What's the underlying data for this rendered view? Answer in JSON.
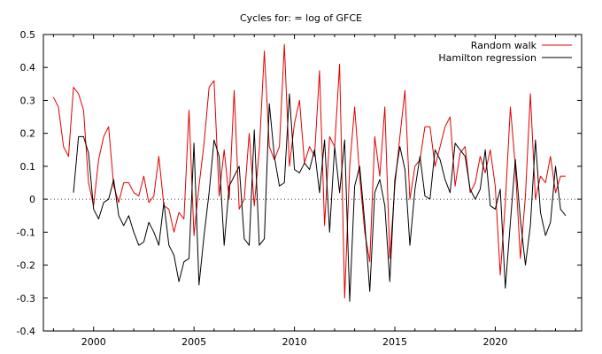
{
  "chart_data": {
    "type": "line",
    "title": "Cycles for: = log of GFCE",
    "xlim": [
      1997.5,
      2024.3
    ],
    "ylim": [
      -0.4,
      0.5
    ],
    "x_ticks": [
      2000,
      2005,
      2010,
      2015,
      2020
    ],
    "y_ticks": [
      -0.4,
      -0.3,
      -0.2,
      -0.1,
      0,
      0.1,
      0.2,
      0.3,
      0.4,
      0.5
    ],
    "grid": false,
    "zero_line": "dotted",
    "legend_position": "top-right",
    "series": [
      {
        "name": "Random walk",
        "color": "#e00000",
        "x": [
          1998.0,
          1998.25,
          1998.5,
          1998.75,
          1999.0,
          1999.25,
          1999.5,
          1999.75,
          2000.0,
          2000.25,
          2000.5,
          2000.75,
          2001.0,
          2001.25,
          2001.5,
          2001.75,
          2002.0,
          2002.25,
          2002.5,
          2002.75,
          2003.0,
          2003.25,
          2003.5,
          2003.75,
          2004.0,
          2004.25,
          2004.5,
          2004.75,
          2005.0,
          2005.25,
          2005.5,
          2005.75,
          2006.0,
          2006.25,
          2006.5,
          2006.75,
          2007.0,
          2007.25,
          2007.5,
          2007.75,
          2008.0,
          2008.25,
          2008.5,
          2008.75,
          2009.0,
          2009.25,
          2009.5,
          2009.75,
          2010.0,
          2010.25,
          2010.5,
          2010.75,
          2011.0,
          2011.25,
          2011.5,
          2011.75,
          2012.0,
          2012.25,
          2012.5,
          2012.75,
          2013.0,
          2013.25,
          2013.5,
          2013.75,
          2014.0,
          2014.25,
          2014.5,
          2014.75,
          2015.0,
          2015.25,
          2015.5,
          2015.75,
          2016.0,
          2016.25,
          2016.5,
          2016.75,
          2017.0,
          2017.25,
          2017.5,
          2017.75,
          2018.0,
          2018.25,
          2018.5,
          2018.75,
          2019.0,
          2019.25,
          2019.5,
          2019.75,
          2020.0,
          2020.25,
          2020.5,
          2020.75,
          2021.0,
          2021.25,
          2021.5,
          2021.75,
          2022.0,
          2022.25,
          2022.5,
          2022.75,
          2023.0,
          2023.25,
          2023.5
        ],
        "values": [
          0.31,
          0.28,
          0.16,
          0.13,
          0.34,
          0.32,
          0.27,
          0.05,
          -0.02,
          0.12,
          0.19,
          0.22,
          0.04,
          -0.01,
          0.05,
          0.05,
          0.02,
          0.01,
          0.07,
          -0.01,
          0.01,
          0.13,
          -0.02,
          -0.03,
          -0.1,
          -0.04,
          -0.06,
          0.27,
          -0.11,
          0.04,
          0.17,
          0.34,
          0.36,
          0.01,
          0.15,
          0.0,
          0.33,
          -0.03,
          0.0,
          0.2,
          -0.02,
          0.15,
          0.45,
          0.16,
          0.12,
          0.16,
          0.47,
          0.1,
          0.23,
          0.3,
          0.11,
          0.16,
          0.13,
          0.39,
          -0.08,
          0.19,
          0.16,
          0.41,
          -0.3,
          0.1,
          0.28,
          0.07,
          -0.1,
          -0.19,
          0.19,
          0.07,
          0.28,
          -0.18,
          0.04,
          0.19,
          0.33,
          0.0,
          0.1,
          0.12,
          0.22,
          0.22,
          0.1,
          0.16,
          0.22,
          0.25,
          0.04,
          0.14,
          0.16,
          0.02,
          0.05,
          0.13,
          0.08,
          0.15,
          0.04,
          -0.23,
          -0.01,
          0.28,
          0.1,
          -0.18,
          0.01,
          0.32,
          0.0,
          0.07,
          0.05,
          0.13,
          0.02,
          0.07,
          0.07
        ]
      },
      {
        "name": "Hamilton regression",
        "color": "#000000",
        "x": [
          1999.0,
          1999.25,
          1999.5,
          1999.75,
          2000.0,
          2000.25,
          2000.5,
          2000.75,
          2001.0,
          2001.25,
          2001.5,
          2001.75,
          2002.0,
          2002.25,
          2002.5,
          2002.75,
          2003.0,
          2003.25,
          2003.5,
          2003.75,
          2004.0,
          2004.25,
          2004.5,
          2004.75,
          2005.0,
          2005.25,
          2005.5,
          2005.75,
          2006.0,
          2006.25,
          2006.5,
          2006.75,
          2007.0,
          2007.25,
          2007.5,
          2007.75,
          2008.0,
          2008.25,
          2008.5,
          2008.75,
          2009.0,
          2009.25,
          2009.5,
          2009.75,
          2010.0,
          2010.25,
          2010.5,
          2010.75,
          2011.0,
          2011.25,
          2011.5,
          2011.75,
          2012.0,
          2012.25,
          2012.5,
          2012.75,
          2013.0,
          2013.25,
          2013.5,
          2013.75,
          2014.0,
          2014.25,
          2014.5,
          2014.75,
          2015.0,
          2015.25,
          2015.5,
          2015.75,
          2016.0,
          2016.25,
          2016.5,
          2016.75,
          2017.0,
          2017.25,
          2017.5,
          2017.75,
          2018.0,
          2018.25,
          2018.5,
          2018.75,
          2019.0,
          2019.25,
          2019.5,
          2019.75,
          2020.0,
          2020.25,
          2020.5,
          2020.75,
          2021.0,
          2021.25,
          2021.5,
          2021.75,
          2022.0,
          2022.25,
          2022.5,
          2022.75,
          2023.0,
          2023.25,
          2023.5
        ],
        "values": [
          0.02,
          0.19,
          0.19,
          0.14,
          -0.03,
          -0.06,
          -0.01,
          0.0,
          0.06,
          -0.05,
          -0.08,
          -0.05,
          -0.1,
          -0.14,
          -0.13,
          -0.07,
          -0.1,
          -0.14,
          -0.01,
          -0.14,
          -0.17,
          -0.25,
          -0.19,
          -0.18,
          0.17,
          -0.26,
          -0.11,
          0.02,
          0.18,
          0.13,
          -0.14,
          0.04,
          0.07,
          0.1,
          -0.12,
          -0.14,
          0.21,
          -0.14,
          -0.12,
          0.29,
          0.13,
          0.04,
          0.05,
          0.32,
          0.09,
          0.08,
          0.11,
          0.09,
          0.15,
          0.02,
          0.18,
          -0.1,
          0.16,
          0.02,
          0.18,
          -0.31,
          0.04,
          0.1,
          -0.07,
          -0.28,
          0.02,
          0.06,
          -0.02,
          -0.25,
          0.06,
          0.16,
          0.09,
          -0.14,
          0.03,
          0.13,
          0.01,
          0.0,
          0.15,
          0.12,
          0.06,
          0.02,
          0.17,
          0.15,
          0.13,
          0.03,
          0.0,
          0.03,
          0.15,
          -0.02,
          -0.03,
          0.03,
          -0.27,
          -0.07,
          0.12,
          -0.06,
          -0.2,
          -0.08,
          0.18,
          -0.04,
          -0.11,
          -0.07,
          0.1,
          -0.03,
          -0.05
        ]
      }
    ]
  }
}
